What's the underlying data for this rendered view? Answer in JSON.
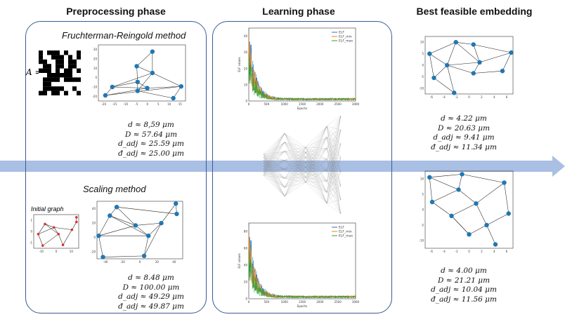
{
  "headers": {
    "preprocessing": "Preprocessing phase",
    "learning": "Learning phase",
    "best": "Best feasible embedding"
  },
  "fr_method": {
    "title": "Fruchterman-Reingold method",
    "matrix_label": "A =",
    "metrics": [
      "d ≈ 8,59 μm",
      "D ≈ 57.64 μm",
      "d_adj ≈ 25.59 μm",
      "đ_adj ≈ 25.00 μm"
    ]
  },
  "scaling_method": {
    "title": "Scaling method",
    "initial_label": "Initial graph",
    "metrics": [
      "d ≈ 8.48 μm",
      "D ≈ 100.00 μm",
      "d_adj ≈ 49.29 μm",
      "đ_adj ≈ 49.87 μm"
    ]
  },
  "best_top": {
    "metrics": [
      "d ≈ 4.22 μm",
      "D ≈ 20.63 μm",
      "d_adj ≈ 9.41 μm",
      "đ_adj ≈ 11.34 μm"
    ]
  },
  "best_bottom": {
    "metrics": [
      "d ≈ 4.00 μm",
      "D ≈ 21.21 μm",
      "d_adj ≈ 10.04 μm",
      "đ_adj ≈ 11.56 μm"
    ]
  },
  "colors": {
    "panel_border": "#3a5a9a",
    "arrow": "#a9bfe3",
    "node": "#1f77b4",
    "initial_node": "#e03030",
    "elf": "#1f77b4",
    "elf_min": "#ff7f0e",
    "elf_max": "#2ca02c"
  },
  "chart_data": [
    {
      "type": "line",
      "ylabel": "ELF values",
      "xlabel": "Epochs",
      "xlim": [
        0,
        3000
      ],
      "ylim": [
        0,
        45
      ],
      "x_ticks": [
        0,
        500,
        1000,
        1500,
        2000,
        2500,
        3000
      ],
      "y_ticks": [
        0,
        10,
        20,
        30,
        40
      ],
      "series": [
        {
          "name": "ELF"
        },
        {
          "name": "ELF_min"
        },
        {
          "name": "ELF_max"
        }
      ]
    },
    {
      "type": "line",
      "ylabel": "ELF values",
      "xlabel": "Epochs",
      "xlim": [
        0,
        3000
      ],
      "ylim": [
        0,
        90
      ],
      "x_ticks": [
        0,
        500,
        1000,
        1500,
        2000,
        2500,
        3000
      ],
      "y_ticks": [
        0,
        20,
        40,
        60,
        80
      ],
      "series": [
        {
          "name": "ELF"
        },
        {
          "name": "ELF_min"
        },
        {
          "name": "ELF_max"
        }
      ]
    }
  ]
}
